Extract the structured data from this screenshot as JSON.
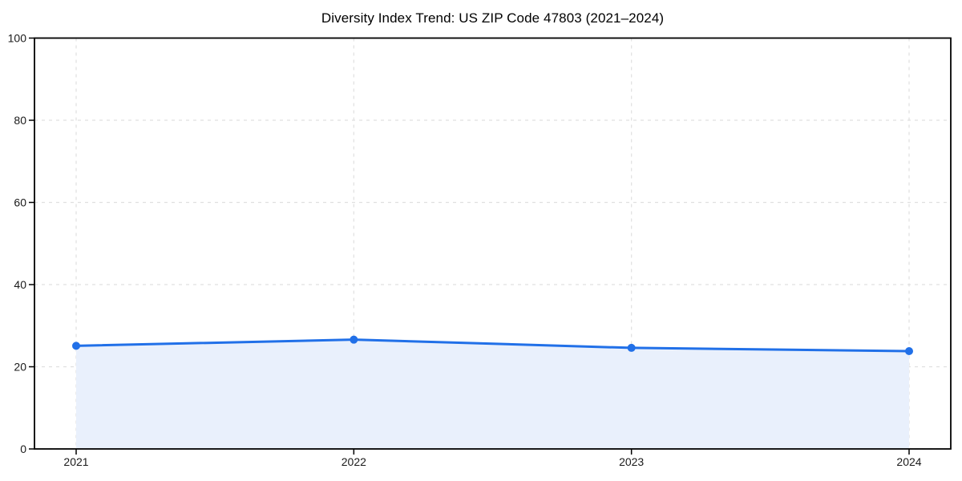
{
  "figure": {
    "background": "#ffffff"
  },
  "chart_data": {
    "type": "line",
    "title": "Diversity Index Trend: US ZIP Code 47803 (2021–2024)",
    "categories": [
      "2021",
      "2022",
      "2023",
      "2024"
    ],
    "series": [
      {
        "name": "Diversity Index",
        "values": [
          25.1,
          26.6,
          24.6,
          23.8
        ]
      }
    ],
    "xlabel": "",
    "ylabel": "",
    "ylim": [
      0,
      100
    ],
    "yticks": [
      0,
      20,
      40,
      60,
      80,
      100
    ],
    "grid": true,
    "grid_style": "dashed",
    "legend_position": "none",
    "marker": "circle",
    "area_fill": true,
    "colors": {
      "line": "#2170e8",
      "marker": "#2170e8",
      "area_fill": "#e9f0fc",
      "grid": "#e0e0e0",
      "axis_border": "#000000",
      "tick_text": "#1a1a1a",
      "title_text": "#000000"
    }
  }
}
